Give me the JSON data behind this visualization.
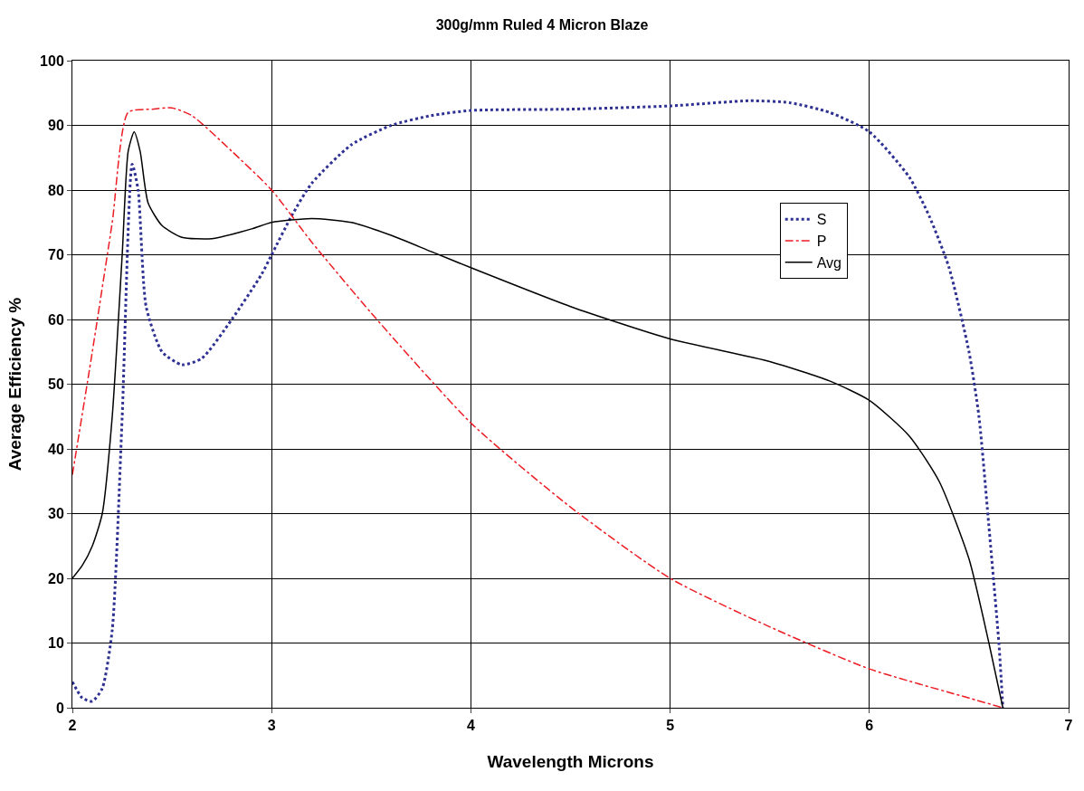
{
  "chart_data": {
    "type": "line",
    "title": "300g/mm Ruled 4 Micron Blaze",
    "xlabel": "Wavelength Microns",
    "ylabel": "Average Efficiency %",
    "xlim": [
      2,
      7
    ],
    "xticks": [
      2,
      3,
      4,
      5,
      6,
      7
    ],
    "ylim": [
      0,
      100
    ],
    "yticks": [
      0,
      10,
      20,
      30,
      40,
      50,
      60,
      70,
      80,
      90,
      100
    ],
    "grid": true,
    "legend": "top right",
    "marker": "none",
    "series": [
      {
        "name": "S",
        "color": "#2e3192",
        "line_style": "dotted",
        "x": [
          2.0,
          2.05,
          2.1,
          2.15,
          2.2,
          2.25,
          2.3,
          2.33,
          2.37,
          2.45,
          2.55,
          2.65,
          2.8,
          2.95,
          3.0,
          3.1,
          3.2,
          3.4,
          3.6,
          3.8,
          4.0,
          4.5,
          5.0,
          5.4,
          5.6,
          5.8,
          6.0,
          6.2,
          6.3,
          6.4,
          6.5,
          6.55,
          6.6,
          6.65,
          6.67
        ],
        "values": [
          4,
          1.5,
          1,
          3,
          12,
          45,
          84,
          80,
          62,
          55,
          53,
          54,
          60,
          67,
          70,
          76,
          81,
          87,
          90,
          91.5,
          92.3,
          92.5,
          93,
          93.8,
          93.5,
          92,
          89,
          82,
          76,
          68,
          55,
          45,
          28,
          10,
          0
        ]
      },
      {
        "name": "P",
        "color": "#ed1c24",
        "line_style": "dashdot",
        "x": [
          2.0,
          2.1,
          2.2,
          2.28,
          2.4,
          2.5,
          2.6,
          2.8,
          3.0,
          3.2,
          3.5,
          4.0,
          4.5,
          5.0,
          5.5,
          6.0,
          6.5,
          6.67
        ],
        "values": [
          36,
          55,
          75,
          92,
          92.5,
          92.7,
          91.5,
          86,
          80,
          72,
          61,
          44,
          31,
          20,
          12.5,
          6,
          1.5,
          0
        ]
      },
      {
        "name": "Avg",
        "color": "#000000",
        "line_style": "solid",
        "x": [
          2.0,
          2.05,
          2.1,
          2.15,
          2.2,
          2.25,
          2.28,
          2.31,
          2.34,
          2.38,
          2.45,
          2.55,
          2.7,
          2.9,
          3.0,
          3.2,
          3.4,
          3.6,
          3.8,
          4.0,
          4.5,
          5.0,
          5.5,
          5.8,
          6.0,
          6.2,
          6.35,
          6.5,
          6.6,
          6.67
        ],
        "values": [
          20,
          22,
          25,
          30,
          45,
          70,
          86,
          89,
          86,
          78,
          74.5,
          72.7,
          72.5,
          74,
          75,
          75.6,
          75,
          73,
          70.5,
          68,
          62,
          57,
          53.5,
          50.5,
          47.5,
          42,
          35,
          23,
          10,
          0
        ]
      }
    ]
  }
}
